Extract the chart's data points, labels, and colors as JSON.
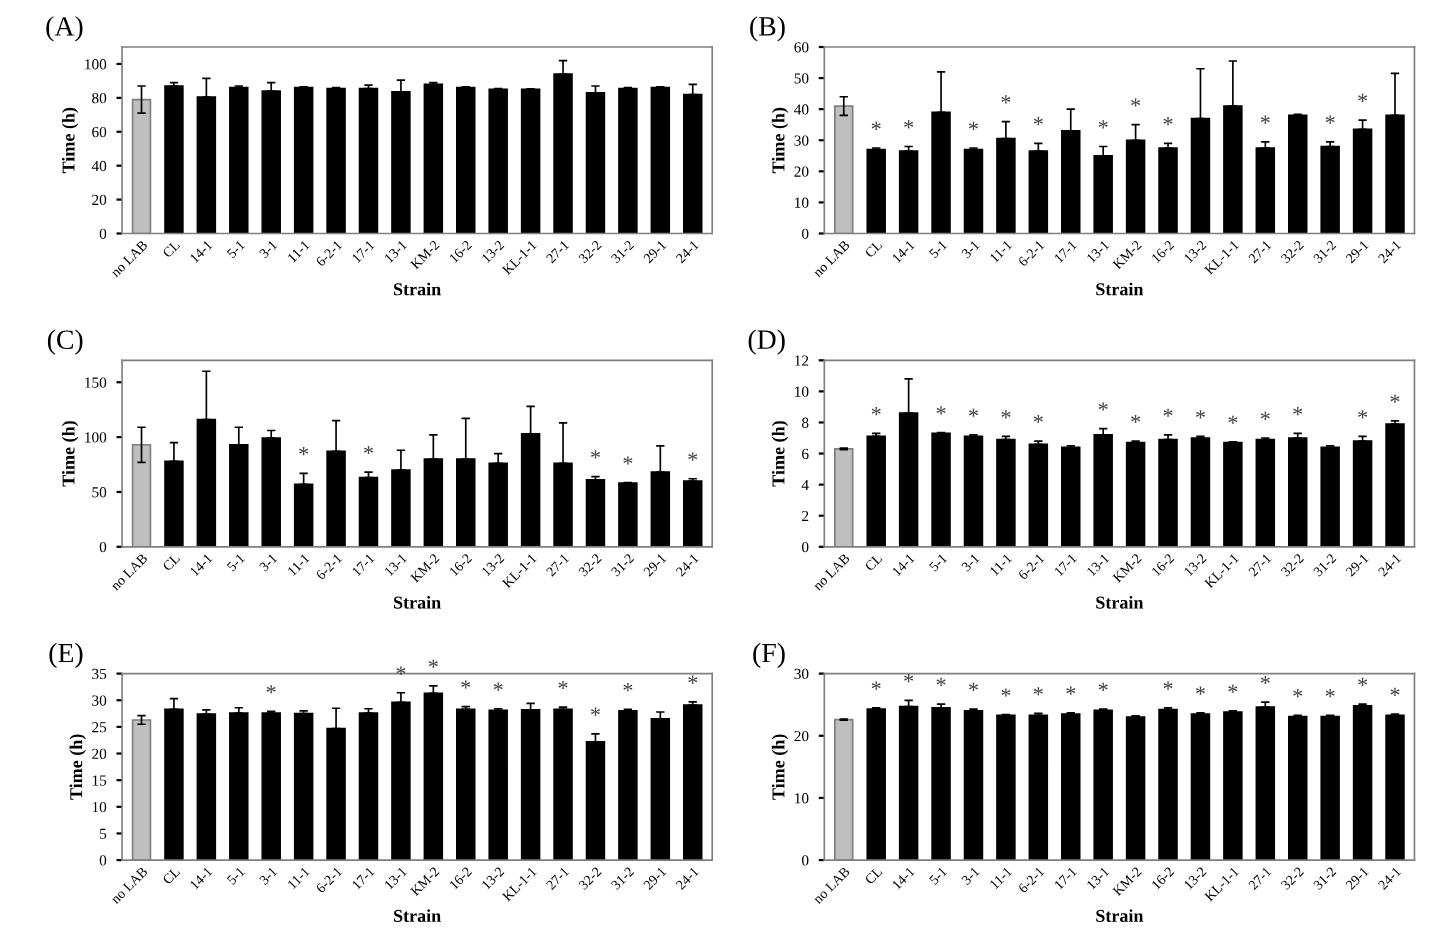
{
  "chart_data": [
    {
      "type": "bar",
      "title": "(A)",
      "xlabel": "Strain",
      "ylabel": "Time (h)",
      "categories": [
        "no LAB",
        "CL",
        "14-1",
        "5-1",
        "3-1",
        "11-1",
        "6-2-1",
        "17-1",
        "13-1",
        "KM-2",
        "16-2",
        "13-2",
        "KL-1-1",
        "27-1",
        "32-2",
        "31-2",
        "29-1",
        "24-1"
      ],
      "values": [
        79,
        87,
        80.5,
        86,
        84,
        86,
        85.5,
        85.5,
        83.5,
        88,
        86,
        85,
        85,
        94,
        83,
        85.5,
        86,
        82
      ],
      "errors": [
        8,
        [
          87,
          89
        ],
        [
          80.5,
          91.5
        ],
        [
          86,
          87
        ],
        [
          84,
          89
        ],
        [
          86,
          86.5
        ],
        [
          85.5,
          86
        ],
        [
          85.5,
          87.5
        ],
        [
          83.5,
          90.5
        ],
        [
          88,
          89
        ],
        [
          86,
          86.5
        ],
        [
          85,
          85.5
        ],
        [
          85,
          85.3
        ],
        [
          94,
          102
        ],
        [
          83,
          87
        ],
        [
          85.5,
          86
        ],
        [
          86,
          86.5
        ],
        [
          82,
          88
        ]
      ],
      "colors": [
        "#bfbfbf",
        "#000000",
        "#000000",
        "#000000",
        "#000000",
        "#000000",
        "#000000",
        "#000000",
        "#000000",
        "#000000",
        "#000000",
        "#000000",
        "#000000",
        "#000000",
        "#000000",
        "#000000",
        "#000000",
        "#000000"
      ],
      "ylim": [
        0,
        110
      ],
      "yticks": [
        0,
        20,
        40,
        60,
        80,
        100
      ],
      "grid": false,
      "legend": false
    },
    {
      "type": "bar",
      "title": "(B)",
      "xlabel": "Strain",
      "ylabel": "Time (h)",
      "categories": [
        "no LAB",
        "CL",
        "14-1",
        "5-1",
        "3-1",
        "11-1",
        "6-2-1",
        "17-1",
        "13-1",
        "KM-2",
        "16-2",
        "13-2",
        "KL-1-1",
        "27-1",
        "32-2",
        "31-2",
        "29-1",
        "24-1"
      ],
      "values": [
        41,
        27,
        26.5,
        39,
        27,
        30.5,
        26.5,
        33,
        25,
        30,
        27.5,
        37,
        41,
        27.5,
        38,
        28,
        33.5,
        38
      ],
      "errors": [
        3,
        [
          27,
          27.5
        ],
        [
          26.5,
          28
        ],
        [
          39,
          52
        ],
        [
          27,
          27.5
        ],
        [
          30.5,
          36
        ],
        [
          26.5,
          29
        ],
        [
          33,
          40
        ],
        [
          25,
          28
        ],
        [
          30,
          35
        ],
        [
          27.5,
          29
        ],
        [
          37,
          53
        ],
        [
          41,
          55.5
        ],
        [
          27.5,
          29.5
        ],
        [
          38,
          38.3
        ],
        [
          28,
          29.5
        ],
        [
          33.5,
          36.5
        ],
        [
          38,
          51.5
        ]
      ],
      "colors": [
        "#bfbfbf",
        "#000000",
        "#000000",
        "#000000",
        "#000000",
        "#000000",
        "#000000",
        "#000000",
        "#000000",
        "#000000",
        "#000000",
        "#000000",
        "#000000",
        "#000000",
        "#000000",
        "#000000",
        "#000000",
        "#000000"
      ],
      "annotations": [
        {
          "text": "*",
          "x": "CL",
          "y": 27.5
        },
        {
          "text": "*",
          "x": "14-1",
          "y": 28
        },
        {
          "text": "*",
          "x": "3-1",
          "y": 27.5
        },
        {
          "text": "*",
          "x": "11-1",
          "y": 36
        },
        {
          "text": "*",
          "x": "6-2-1",
          "y": 29
        },
        {
          "text": "*",
          "x": "13-1",
          "y": 28
        },
        {
          "text": "*",
          "x": "KM-2",
          "y": 35
        },
        {
          "text": "*",
          "x": "16-2",
          "y": 29
        },
        {
          "text": "*",
          "x": "27-1",
          "y": 29.5
        },
        {
          "text": "*",
          "x": "31-2",
          "y": 29.5
        },
        {
          "text": "*",
          "x": "29-1",
          "y": 36.5
        }
      ],
      "ylim": [
        0,
        60
      ],
      "yticks": [
        0,
        10,
        20,
        30,
        40,
        50,
        60
      ],
      "grid": false,
      "legend": false
    },
    {
      "type": "bar",
      "title": "(C)",
      "xlabel": "Strain",
      "ylabel": "Time (h)",
      "categories": [
        "no LAB",
        "CL",
        "14-1",
        "5-1",
        "3-1",
        "11-1",
        "6-2-1",
        "17-1",
        "13-1",
        "KM-2",
        "16-2",
        "13-2",
        "KL-1-1",
        "27-1",
        "32-2",
        "31-2",
        "29-1",
        "24-1"
      ],
      "values": [
        93,
        78,
        116,
        93,
        99,
        57,
        87,
        63,
        70,
        80,
        80,
        76,
        103,
        76,
        61,
        58,
        68,
        60
      ],
      "errors": [
        16,
        [
          78,
          95
        ],
        [
          116,
          160
        ],
        [
          93,
          109
        ],
        [
          99,
          106
        ],
        [
          57,
          67
        ],
        [
          87,
          115
        ],
        [
          63,
          68
        ],
        [
          70,
          88
        ],
        [
          80,
          102
        ],
        [
          80,
          117
        ],
        [
          76,
          85
        ],
        [
          103,
          128
        ],
        [
          76,
          113
        ],
        [
          61,
          64
        ],
        [
          58,
          58.5
        ],
        [
          68,
          92
        ],
        [
          60,
          62
        ]
      ],
      "colors": [
        "#bfbfbf",
        "#000000",
        "#000000",
        "#000000",
        "#000000",
        "#000000",
        "#000000",
        "#000000",
        "#000000",
        "#000000",
        "#000000",
        "#000000",
        "#000000",
        "#000000",
        "#000000",
        "#000000",
        "#000000",
        "#000000"
      ],
      "annotations": [
        {
          "text": "*",
          "x": "11-1",
          "y": 67
        },
        {
          "text": "*",
          "x": "17-1",
          "y": 68
        },
        {
          "text": "*",
          "x": "32-2",
          "y": 64
        },
        {
          "text": "*",
          "x": "31-2",
          "y": 58.5
        },
        {
          "text": "*",
          "x": "24-1",
          "y": 62
        }
      ],
      "ylim": [
        0,
        170
      ],
      "yticks": [
        0,
        50,
        100,
        150
      ],
      "grid": false,
      "legend": false
    },
    {
      "type": "bar",
      "title": "(D)",
      "xlabel": "Strain",
      "ylabel": "Time (h)",
      "categories": [
        "no LAB",
        "CL",
        "14-1",
        "5-1",
        "3-1",
        "11-1",
        "6-2-1",
        "17-1",
        "13-1",
        "KM-2",
        "16-2",
        "13-2",
        "KL-1-1",
        "27-1",
        "32-2",
        "31-2",
        "29-1",
        "24-1"
      ],
      "values": [
        6.3,
        7.1,
        8.6,
        7.3,
        7.1,
        6.9,
        6.6,
        6.4,
        7.2,
        6.7,
        6.9,
        7.0,
        6.7,
        6.9,
        7.0,
        6.4,
        6.8,
        7.9
      ],
      "errors": [
        0.05,
        [
          7.1,
          7.3
        ],
        [
          8.6,
          10.8
        ],
        [
          7.3,
          7.35
        ],
        [
          7.1,
          7.2
        ],
        [
          6.9,
          7.1
        ],
        [
          6.6,
          6.8
        ],
        [
          6.4,
          6.5
        ],
        [
          7.2,
          7.6
        ],
        [
          6.7,
          6.8
        ],
        [
          6.9,
          7.2
        ],
        [
          7.0,
          7.1
        ],
        [
          6.7,
          6.75
        ],
        [
          6.9,
          7.0
        ],
        [
          7.0,
          7.3
        ],
        [
          6.4,
          6.5
        ],
        [
          6.8,
          7.1
        ],
        [
          7.9,
          8.1
        ]
      ],
      "colors": [
        "#bfbfbf",
        "#000000",
        "#000000",
        "#000000",
        "#000000",
        "#000000",
        "#000000",
        "#000000",
        "#000000",
        "#000000",
        "#000000",
        "#000000",
        "#000000",
        "#000000",
        "#000000",
        "#000000",
        "#000000",
        "#000000"
      ],
      "annotations": [
        {
          "text": "*",
          "x": "CL",
          "y": 7.3
        },
        {
          "text": "*",
          "x": "5-1",
          "y": 7.35
        },
        {
          "text": "*",
          "x": "3-1",
          "y": 7.2
        },
        {
          "text": "*",
          "x": "11-1",
          "y": 7.1
        },
        {
          "text": "*",
          "x": "6-2-1",
          "y": 6.8
        },
        {
          "text": "*",
          "x": "13-1",
          "y": 7.6
        },
        {
          "text": "*",
          "x": "KM-2",
          "y": 6.8
        },
        {
          "text": "*",
          "x": "16-2",
          "y": 7.2
        },
        {
          "text": "*",
          "x": "13-2",
          "y": 7.1
        },
        {
          "text": "*",
          "x": "KL-1-1",
          "y": 6.75
        },
        {
          "text": "*",
          "x": "27-1",
          "y": 7.0
        },
        {
          "text": "*",
          "x": "32-2",
          "y": 7.3
        },
        {
          "text": "*",
          "x": "29-1",
          "y": 7.1
        },
        {
          "text": "*",
          "x": "24-1",
          "y": 8.1
        }
      ],
      "ylim": [
        0,
        12
      ],
      "yticks": [
        0,
        2,
        4,
        6,
        8,
        10,
        12
      ],
      "grid": false,
      "legend": false
    },
    {
      "type": "bar",
      "title": "(E)",
      "xlabel": "Strain",
      "ylabel": "Time (h)",
      "categories": [
        "no LAB",
        "CL",
        "14-1",
        "5-1",
        "3-1",
        "11-1",
        "6-2-1",
        "17-1",
        "13-1",
        "KM-2",
        "16-2",
        "13-2",
        "KL-1-1",
        "27-1",
        "32-2",
        "31-2",
        "29-1",
        "24-1"
      ],
      "values": [
        26.3,
        28.3,
        27.4,
        27.6,
        27.6,
        27.5,
        24.7,
        27.6,
        29.6,
        31.3,
        28.3,
        28.1,
        28.2,
        28.3,
        22.2,
        28,
        26.5,
        29.1
      ],
      "errors": [
        0.8,
        [
          28.3,
          30.3
        ],
        [
          27.4,
          28.2
        ],
        [
          27.6,
          28.6
        ],
        [
          27.6,
          27.9
        ],
        [
          27.5,
          28
        ],
        [
          24.7,
          28.5
        ],
        [
          27.6,
          28.4
        ],
        [
          29.6,
          31.4
        ],
        [
          31.3,
          32.7
        ],
        [
          28.3,
          28.8
        ],
        [
          28.1,
          28.4
        ],
        [
          28.2,
          29.4
        ],
        [
          28.3,
          28.7
        ],
        [
          22.2,
          23.7
        ],
        [
          28,
          28.3
        ],
        [
          26.5,
          27.8
        ],
        [
          29.1,
          29.7
        ]
      ],
      "colors": [
        "#bfbfbf",
        "#000000",
        "#000000",
        "#000000",
        "#000000",
        "#000000",
        "#000000",
        "#000000",
        "#000000",
        "#000000",
        "#000000",
        "#000000",
        "#000000",
        "#000000",
        "#000000",
        "#000000",
        "#000000",
        "#000000"
      ],
      "annotations": [
        {
          "text": "*",
          "x": "3-1",
          "y": 27.9
        },
        {
          "text": "*",
          "x": "13-1",
          "y": 31.4
        },
        {
          "text": "*",
          "x": "KM-2",
          "y": 32.7
        },
        {
          "text": "*",
          "x": "16-2",
          "y": 28.8
        },
        {
          "text": "*",
          "x": "13-2",
          "y": 28.4
        },
        {
          "text": "*",
          "x": "27-1",
          "y": 28.7
        },
        {
          "text": "*",
          "x": "32-2",
          "y": 23.7
        },
        {
          "text": "*",
          "x": "31-2",
          "y": 28.3
        },
        {
          "text": "*",
          "x": "24-1",
          "y": 29.7
        }
      ],
      "ylim": [
        0,
        35
      ],
      "yticks": [
        0,
        5,
        10,
        15,
        20,
        25,
        30,
        35
      ],
      "grid": false,
      "legend": false
    },
    {
      "type": "bar",
      "title": "(F)",
      "xlabel": "Strain",
      "ylabel": "Time (h)",
      "categories": [
        "no LAB",
        "CL",
        "14-1",
        "5-1",
        "3-1",
        "11-1",
        "6-2-1",
        "17-1",
        "13-1",
        "KM-2",
        "16-2",
        "13-2",
        "KL-1-1",
        "27-1",
        "32-2",
        "31-2",
        "29-1",
        "24-1"
      ],
      "values": [
        22.6,
        24.3,
        24.7,
        24.5,
        24,
        23.3,
        23.3,
        23.5,
        24.1,
        23,
        24.2,
        23.5,
        23.8,
        24.6,
        23.1,
        23.1,
        24.8,
        23.3
      ],
      "errors": [
        0.1,
        [
          24.3,
          24.5
        ],
        [
          24.7,
          25.7
        ],
        [
          24.5,
          25.1
        ],
        [
          24,
          24.3
        ],
        [
          23.3,
          23.4
        ],
        [
          23.3,
          23.6
        ],
        [
          23.5,
          23.7
        ],
        [
          24.1,
          24.3
        ],
        [
          23,
          23.2
        ],
        [
          24.2,
          24.5
        ],
        [
          23.5,
          23.7
        ],
        [
          23.8,
          24
        ],
        [
          24.6,
          25.4
        ],
        [
          23.1,
          23.3
        ],
        [
          23.1,
          23.3
        ],
        [
          24.8,
          25.1
        ],
        [
          23.3,
          23.5
        ]
      ],
      "colors": [
        "#bfbfbf",
        "#000000",
        "#000000",
        "#000000",
        "#000000",
        "#000000",
        "#000000",
        "#000000",
        "#000000",
        "#000000",
        "#000000",
        "#000000",
        "#000000",
        "#000000",
        "#000000",
        "#000000",
        "#000000",
        "#000000"
      ],
      "annotations": [
        {
          "text": "*",
          "x": "CL",
          "y": 24.5
        },
        {
          "text": "*",
          "x": "14-1",
          "y": 25.7
        },
        {
          "text": "*",
          "x": "5-1",
          "y": 25.1
        },
        {
          "text": "*",
          "x": "3-1",
          "y": 24.3
        },
        {
          "text": "*",
          "x": "11-1",
          "y": 23.4
        },
        {
          "text": "*",
          "x": "6-2-1",
          "y": 23.6
        },
        {
          "text": "*",
          "x": "17-1",
          "y": 23.7
        },
        {
          "text": "*",
          "x": "13-1",
          "y": 24.3
        },
        {
          "text": "*",
          "x": "16-2",
          "y": 24.5
        },
        {
          "text": "*",
          "x": "13-2",
          "y": 23.7
        },
        {
          "text": "*",
          "x": "KL-1-1",
          "y": 24
        },
        {
          "text": "*",
          "x": "27-1",
          "y": 25.4
        },
        {
          "text": "*",
          "x": "32-2",
          "y": 23.3
        },
        {
          "text": "*",
          "x": "31-2",
          "y": 23.3
        },
        {
          "text": "*",
          "x": "29-1",
          "y": 25.1
        },
        {
          "text": "*",
          "x": "24-1",
          "y": 23.5
        }
      ],
      "ylim": [
        0,
        30
      ],
      "yticks": [
        0,
        10,
        20,
        30
      ],
      "grid": false,
      "legend": false
    }
  ]
}
